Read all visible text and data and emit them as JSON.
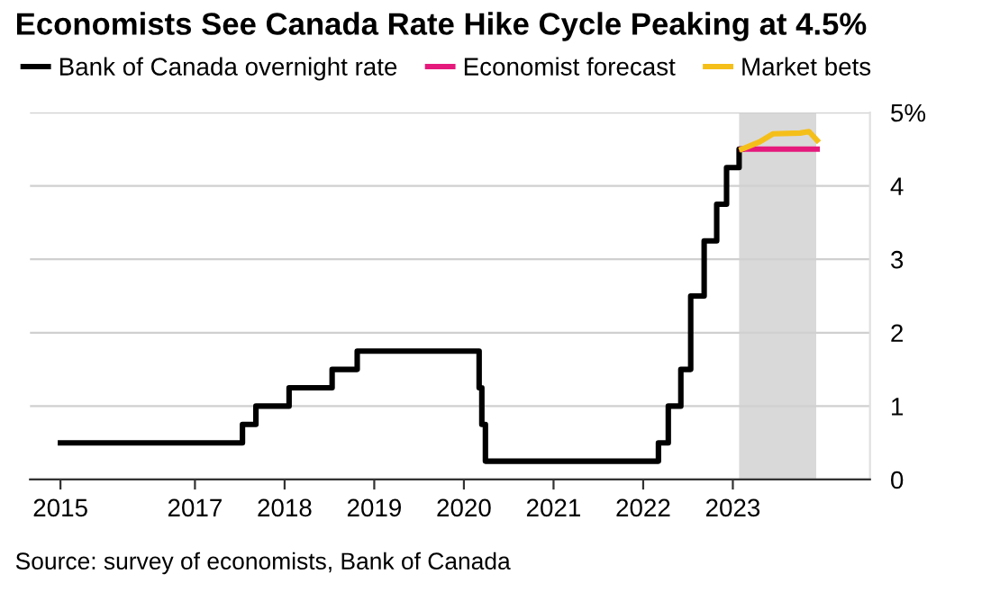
{
  "chart_data": {
    "type": "step",
    "title": "Economists See Canada Rate Hike Cycle Peaking at 4.5%",
    "annotations": [
      "Source: survey of economists, Bank of Canada"
    ],
    "series": [
      {
        "name": "Bank of Canada overnight rate",
        "color": "#000000",
        "x": [
          2015.5,
          2017.53,
          2017.68,
          2018.05,
          2018.53,
          2018.81,
          2020.17,
          2020.2,
          2020.24,
          2022.17,
          2022.28,
          2022.42,
          2022.53,
          2022.68,
          2022.82,
          2022.93,
          2023.07,
          2023.1
        ],
        "values": [
          0.5,
          0.75,
          1.0,
          1.25,
          1.5,
          1.75,
          1.25,
          0.75,
          0.25,
          0.5,
          1.0,
          1.5,
          2.5,
          3.25,
          3.75,
          4.25,
          4.5,
          4.5
        ]
      },
      {
        "name": "Economist forecast",
        "type": "line",
        "color": "#e5197b",
        "x": [
          2023.1,
          2023.94
        ],
        "values": [
          4.5,
          4.5
        ]
      },
      {
        "name": "Market bets",
        "type": "line",
        "color": "#f5bf1a",
        "x": [
          2023.1,
          2023.3,
          2023.45,
          2023.75,
          2023.85,
          2023.94
        ],
        "values": [
          4.5,
          4.6,
          4.71,
          4.72,
          4.74,
          4.62
        ]
      }
    ],
    "bands": [
      {
        "axis": "x",
        "from": 2023.07,
        "to": 2023.93,
        "color": "#d9d9d9"
      }
    ],
    "xlim": [
      2015.16,
      2024.53
    ],
    "ylim": [
      0,
      5
    ],
    "xticks": [
      {
        "value": 2015.5,
        "label": "2015"
      },
      2017,
      2018,
      2019,
      2020,
      2021,
      2022,
      2023
    ],
    "yticks": [
      0,
      1,
      2,
      3,
      4,
      {
        "value": 5,
        "label": "5%"
      }
    ],
    "grid": "y",
    "legend": "top left"
  }
}
